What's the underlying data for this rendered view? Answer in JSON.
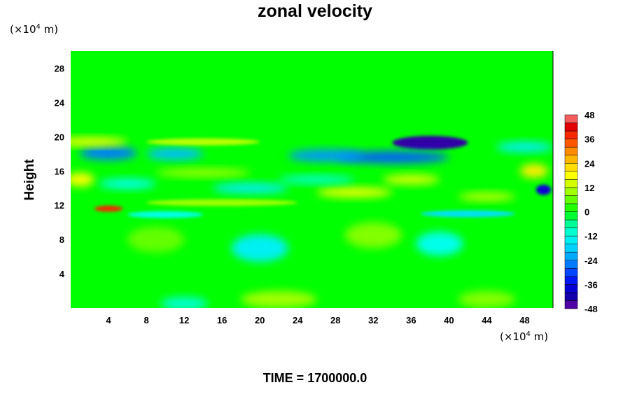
{
  "chart_data": {
    "type": "heatmap",
    "title": "zonal velocity",
    "x_unit": "10",
    "y_unit": "10",
    "unit_exponent": "4",
    "unit_suffix": "m)",
    "unit_prefix": "(×",
    "ylabel": "Height",
    "xlabel": "",
    "time_label": "TIME = 1700000.0",
    "xlim": [
      0,
      51
    ],
    "ylim": [
      0,
      30
    ],
    "x_ticks": [
      4,
      8,
      12,
      16,
      20,
      24,
      28,
      32,
      36,
      40,
      44,
      48
    ],
    "y_ticks": [
      4,
      8,
      12,
      16,
      20,
      24,
      28
    ],
    "colorbar": {
      "min": -48,
      "max": 48,
      "step": 4,
      "labels": [
        48,
        36,
        24,
        12,
        0,
        -12,
        -24,
        -36,
        -48
      ]
    },
    "features": [
      {
        "x": 38,
        "y": 19.3,
        "value": -44,
        "rx": 4.0,
        "ry": 0.8
      },
      {
        "x": 34,
        "y": 17.6,
        "value": -28,
        "rx": 6.0,
        "ry": 0.7
      },
      {
        "x": 27,
        "y": 17.8,
        "value": -24,
        "rx": 4.0,
        "ry": 0.7
      },
      {
        "x": 4,
        "y": 18.1,
        "value": -26,
        "rx": 3.0,
        "ry": 0.8
      },
      {
        "x": 11,
        "y": 18.0,
        "value": -20,
        "rx": 3.0,
        "ry": 0.7
      },
      {
        "x": 50,
        "y": 13.8,
        "value": -38,
        "rx": 0.8,
        "ry": 0.6
      },
      {
        "x": 20,
        "y": 7.0,
        "value": -14,
        "rx": 3.0,
        "ry": 1.6
      },
      {
        "x": 39,
        "y": 7.5,
        "value": -12,
        "rx": 2.5,
        "ry": 1.4
      },
      {
        "x": 4,
        "y": 11.6,
        "value": 38,
        "rx": 1.5,
        "ry": 0.35
      },
      {
        "x": 2,
        "y": 19.4,
        "value": 18,
        "rx": 4.0,
        "ry": 0.5
      },
      {
        "x": 14,
        "y": 19.4,
        "value": 12,
        "rx": 6.0,
        "ry": 0.4
      },
      {
        "x": 30,
        "y": 13.5,
        "value": 16,
        "rx": 4.0,
        "ry": 0.6
      },
      {
        "x": 36,
        "y": 15.0,
        "value": 14,
        "rx": 3.0,
        "ry": 0.6
      },
      {
        "x": 49,
        "y": 16.0,
        "value": 20,
        "rx": 1.5,
        "ry": 0.8
      },
      {
        "x": 1,
        "y": 15.0,
        "value": 18,
        "rx": 1.5,
        "ry": 0.8
      },
      {
        "x": 22,
        "y": 1.0,
        "value": 10,
        "rx": 4.0,
        "ry": 1.0
      },
      {
        "x": 44,
        "y": 1.0,
        "value": 8,
        "rx": 3.0,
        "ry": 1.0
      },
      {
        "x": 32,
        "y": 8.5,
        "value": 8,
        "rx": 3.0,
        "ry": 1.5
      },
      {
        "x": 9,
        "y": 8.0,
        "value": 6,
        "rx": 3.0,
        "ry": 1.5
      },
      {
        "x": 14,
        "y": 15.8,
        "value": 10,
        "rx": 5.0,
        "ry": 0.5
      },
      {
        "x": 16,
        "y": 12.3,
        "value": 10,
        "rx": 8.0,
        "ry": 0.4
      },
      {
        "x": 44,
        "y": 13.0,
        "value": 12,
        "rx": 3.0,
        "ry": 0.5
      },
      {
        "x": 19,
        "y": 14.0,
        "value": -14,
        "rx": 4.0,
        "ry": 0.6
      },
      {
        "x": 42,
        "y": 11.0,
        "value": -16,
        "rx": 5.0,
        "ry": 0.4
      },
      {
        "x": 10,
        "y": 10.9,
        "value": -12,
        "rx": 4.0,
        "ry": 0.4
      },
      {
        "x": 6,
        "y": 14.5,
        "value": -12,
        "rx": 3.0,
        "ry": 0.6
      },
      {
        "x": 26,
        "y": 15.0,
        "value": -10,
        "rx": 4.0,
        "ry": 0.5
      },
      {
        "x": 12,
        "y": 0.5,
        "value": -10,
        "rx": 2.5,
        "ry": 0.8
      },
      {
        "x": 48,
        "y": 18.8,
        "value": -14,
        "rx": 3.0,
        "ry": 0.6
      }
    ]
  }
}
